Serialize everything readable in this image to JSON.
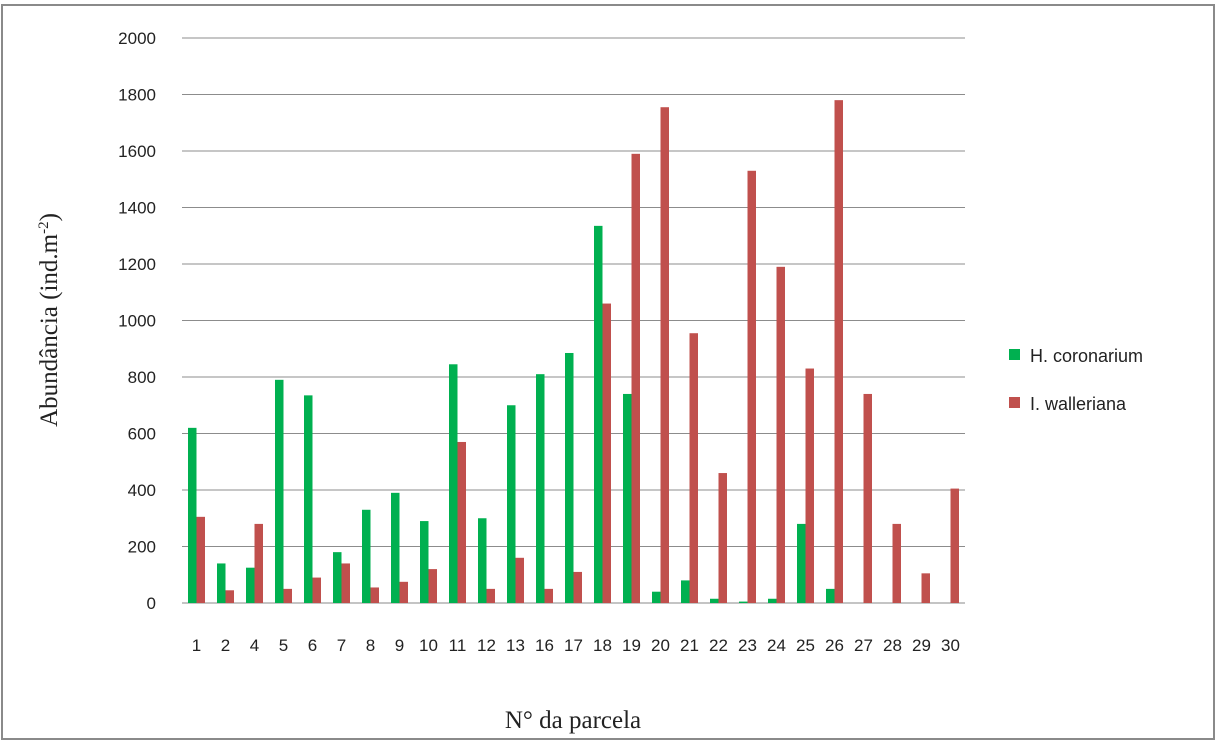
{
  "chart_data": {
    "type": "bar",
    "title": "",
    "xlabel": "N° da parcela",
    "ylabel": "Abundância (ind.m-2)",
    "ylabel_main": "Abundância (ind.m",
    "ylabel_sup": "-2",
    "ylabel_close": ")",
    "ylim": [
      0,
      2000
    ],
    "yticks": [
      0,
      200,
      400,
      600,
      800,
      1000,
      1200,
      1400,
      1600,
      1800,
      2000
    ],
    "grid": true,
    "legend_position": "right",
    "categories": [
      "1",
      "2",
      "4",
      "5",
      "6",
      "7",
      "8",
      "9",
      "10",
      "11",
      "12",
      "13",
      "16",
      "17",
      "18",
      "19",
      "20",
      "21",
      "22",
      "23",
      "24",
      "25",
      "26",
      "27",
      "28",
      "29",
      "30"
    ],
    "series": [
      {
        "name": "H. coronarium",
        "color": "#00b050",
        "values": [
          620,
          140,
          125,
          790,
          735,
          180,
          330,
          390,
          290,
          845,
          300,
          700,
          810,
          885,
          1335,
          740,
          40,
          80,
          15,
          5,
          15,
          280,
          50,
          0,
          0,
          0,
          0
        ]
      },
      {
        "name": "I. walleriana",
        "color": "#c0504d",
        "values": [
          305,
          45,
          280,
          50,
          90,
          140,
          55,
          75,
          120,
          570,
          50,
          160,
          50,
          110,
          1060,
          1590,
          1755,
          955,
          460,
          1530,
          1190,
          830,
          1780,
          740,
          280,
          105,
          405
        ]
      }
    ]
  }
}
